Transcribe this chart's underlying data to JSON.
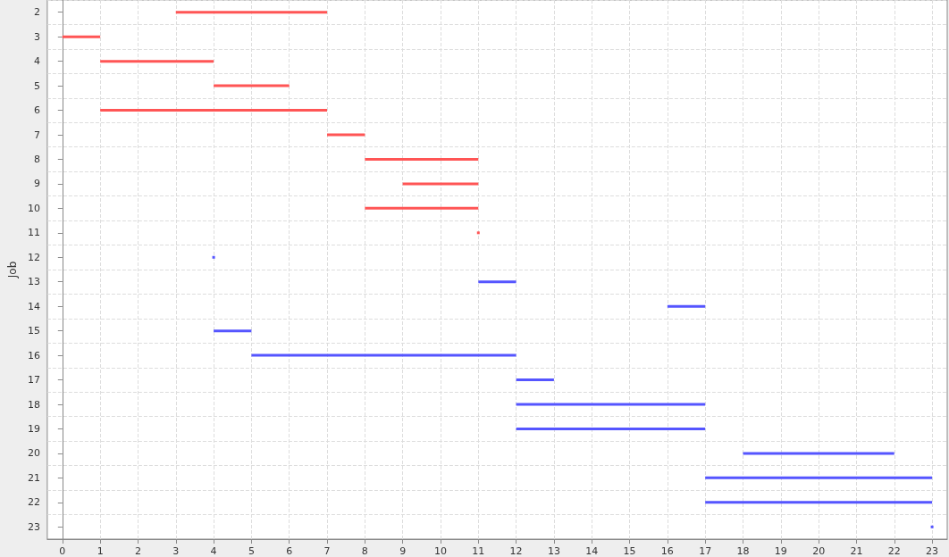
{
  "chart_data": {
    "type": "bar",
    "orientation": "horizontal",
    "ylabel": "Job",
    "categories": [
      "2",
      "3",
      "4",
      "5",
      "6",
      "7",
      "8",
      "9",
      "10",
      "11",
      "12",
      "13",
      "14",
      "15",
      "16",
      "17",
      "18",
      "19",
      "20",
      "21",
      "22",
      "23"
    ],
    "series": [
      {
        "color": "#ff5555",
        "base": [
          3,
          0,
          1,
          4,
          1,
          7,
          8,
          9,
          8,
          11,
          null,
          null,
          null,
          null,
          null,
          null,
          null,
          null,
          null,
          null,
          null,
          null
        ],
        "values": [
          4,
          1,
          3,
          2,
          6,
          1,
          3,
          2,
          3,
          0,
          null,
          null,
          null,
          null,
          null,
          null,
          null,
          null,
          null,
          null,
          null,
          null
        ]
      },
      {
        "color": "#5555ff",
        "base": [
          null,
          null,
          null,
          null,
          null,
          null,
          null,
          null,
          null,
          null,
          4,
          11,
          16,
          4,
          5,
          12,
          12,
          12,
          18,
          17,
          17,
          23
        ],
        "values": [
          null,
          null,
          null,
          null,
          null,
          null,
          null,
          null,
          null,
          null,
          0,
          1,
          1,
          1,
          7,
          1,
          5,
          5,
          4,
          6,
          6,
          0
        ]
      }
    ],
    "xlim": [
      -0.4,
      23.4
    ],
    "xticks": [
      0,
      1,
      2,
      3,
      4,
      5,
      6,
      7,
      8,
      9,
      10,
      11,
      12,
      13,
      14,
      15,
      16,
      17,
      18,
      19,
      20,
      21,
      22,
      23
    ],
    "grid": true
  }
}
